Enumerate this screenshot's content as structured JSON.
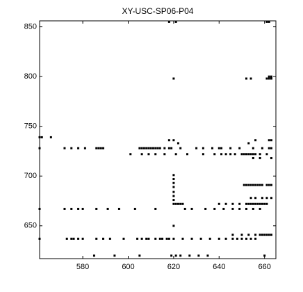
{
  "chart_data": {
    "type": "scatter",
    "title": "XY-USC-SP06-P04",
    "x": [
      561,
      562,
      566,
      561,
      572,
      575,
      578,
      581,
      586,
      587,
      588,
      589,
      605,
      606,
      607,
      608,
      609,
      610,
      611,
      612,
      613,
      614,
      616,
      618,
      619,
      623,
      630,
      633,
      637,
      640,
      641,
      645,
      649,
      655,
      659,
      662,
      663,
      601,
      606,
      609,
      612,
      616,
      621,
      626,
      633,
      638,
      641,
      643,
      645,
      647,
      650,
      651,
      652,
      653,
      654,
      655,
      656,
      658,
      661,
      618,
      620,
      656,
      662,
      663,
      622,
      653,
      655,
      658,
      663,
      620,
      620,
      620,
      620,
      620,
      620,
      620,
      651,
      652,
      653,
      654,
      655,
      656,
      657,
      658,
      659,
      661,
      662,
      663,
      654,
      656,
      659,
      661,
      663,
      620,
      621,
      622,
      623,
      624,
      640,
      643,
      646,
      649,
      652,
      653,
      654,
      655,
      656,
      657,
      658,
      659,
      660,
      661,
      561,
      572,
      575,
      578,
      580,
      586,
      591,
      596,
      603,
      612,
      625,
      628,
      634,
      638,
      642,
      646,
      649,
      652,
      655,
      658,
      620,
      646,
      650,
      653,
      656,
      658,
      659,
      660,
      661,
      662,
      663,
      561,
      573,
      575,
      576,
      578,
      580,
      586,
      589,
      592,
      598,
      604,
      606,
      608,
      609,
      612,
      614,
      615,
      617,
      618,
      620,
      624,
      628,
      632,
      636,
      640,
      643,
      646,
      648,
      650,
      652,
      654,
      656,
      585,
      594,
      605,
      619,
      621,
      623,
      627,
      631,
      635,
      660,
      620,
      652,
      654,
      661,
      662,
      663,
      662,
      663,
      618,
      621,
      661,
      662
    ],
    "y": [
      739,
      739,
      739,
      728,
      728,
      728,
      728,
      728,
      728,
      728,
      728,
      728,
      728,
      728,
      728,
      728,
      728,
      728,
      728,
      728,
      728,
      728,
      728,
      728,
      728,
      728,
      728,
      728,
      728,
      728,
      728,
      728,
      728,
      728,
      728,
      728,
      728,
      722,
      722,
      722,
      722,
      722,
      722,
      722,
      722,
      722,
      722,
      722,
      722,
      722,
      722,
      722,
      722,
      722,
      722,
      722,
      722,
      722,
      722,
      736,
      736,
      736,
      736,
      736,
      733,
      733,
      718,
      718,
      718,
      701,
      697,
      693,
      689,
      684,
      680,
      676,
      691,
      691,
      691,
      691,
      691,
      691,
      691,
      691,
      691,
      691,
      691,
      691,
      678,
      678,
      678,
      678,
      678,
      672,
      672,
      672,
      672,
      672,
      672,
      672,
      672,
      672,
      672,
      672,
      672,
      672,
      672,
      672,
      672,
      672,
      672,
      672,
      667,
      667,
      667,
      667,
      667,
      667,
      667,
      667,
      667,
      667,
      667,
      667,
      667,
      667,
      667,
      667,
      667,
      667,
      667,
      667,
      650,
      641,
      641,
      641,
      641,
      641,
      641,
      641,
      641,
      641,
      641,
      637,
      637,
      637,
      637,
      637,
      637,
      637,
      637,
      637,
      637,
      637,
      637,
      637,
      637,
      637,
      637,
      637,
      637,
      637,
      637,
      637,
      637,
      637,
      637,
      637,
      637,
      637,
      637,
      637,
      637,
      637,
      637,
      620,
      620,
      620,
      620,
      620,
      620,
      620,
      620,
      620,
      620,
      798,
      798,
      798,
      798,
      798,
      798,
      800,
      800,
      855,
      855,
      855,
      855
    ],
    "color": "#000000",
    "xlim": [
      561,
      665
    ],
    "xticks": [
      580,
      600,
      620,
      640,
      660
    ],
    "ylim": [
      617,
      856
    ],
    "yticks": [
      650,
      700,
      750,
      800,
      850
    ]
  }
}
